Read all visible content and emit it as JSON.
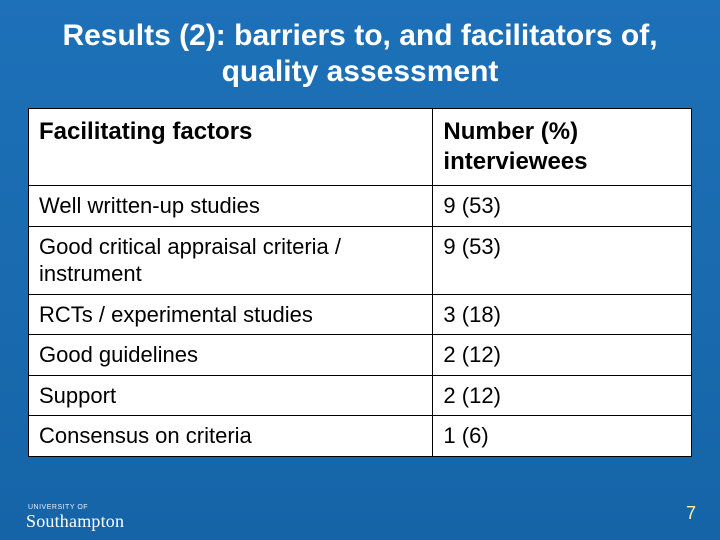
{
  "slide": {
    "title": "Results (2): barriers to, and facilitators of, quality assessment",
    "page_number": "7",
    "logo": {
      "line1": "UNIVERSITY OF",
      "line2": "Southampton"
    }
  },
  "table": {
    "type": "table",
    "background_color": "#ffffff",
    "border_color": "#000000",
    "text_color": "#000000",
    "header_fontsize": 24,
    "cell_fontsize": 22,
    "column_widths_pct": [
      61,
      39
    ],
    "columns": [
      "Facilitating factors",
      "Number (%) interviewees"
    ],
    "rows": [
      [
        "Well written-up studies",
        "9 (53)"
      ],
      [
        "Good critical appraisal criteria / instrument",
        "9 (53)"
      ],
      [
        "RCTs / experimental studies",
        "3 (18)"
      ],
      [
        "Good guidelines",
        "2 (12)"
      ],
      [
        "Support",
        "2 (12)"
      ],
      [
        "Consensus on criteria",
        "1 (6)"
      ]
    ]
  },
  "style": {
    "slide_bg_top": "#1d71b8",
    "slide_bg_bottom": "#1564a8",
    "title_color": "#ffffff",
    "title_fontsize": 30,
    "pagenum_color": "#ffef9e"
  }
}
